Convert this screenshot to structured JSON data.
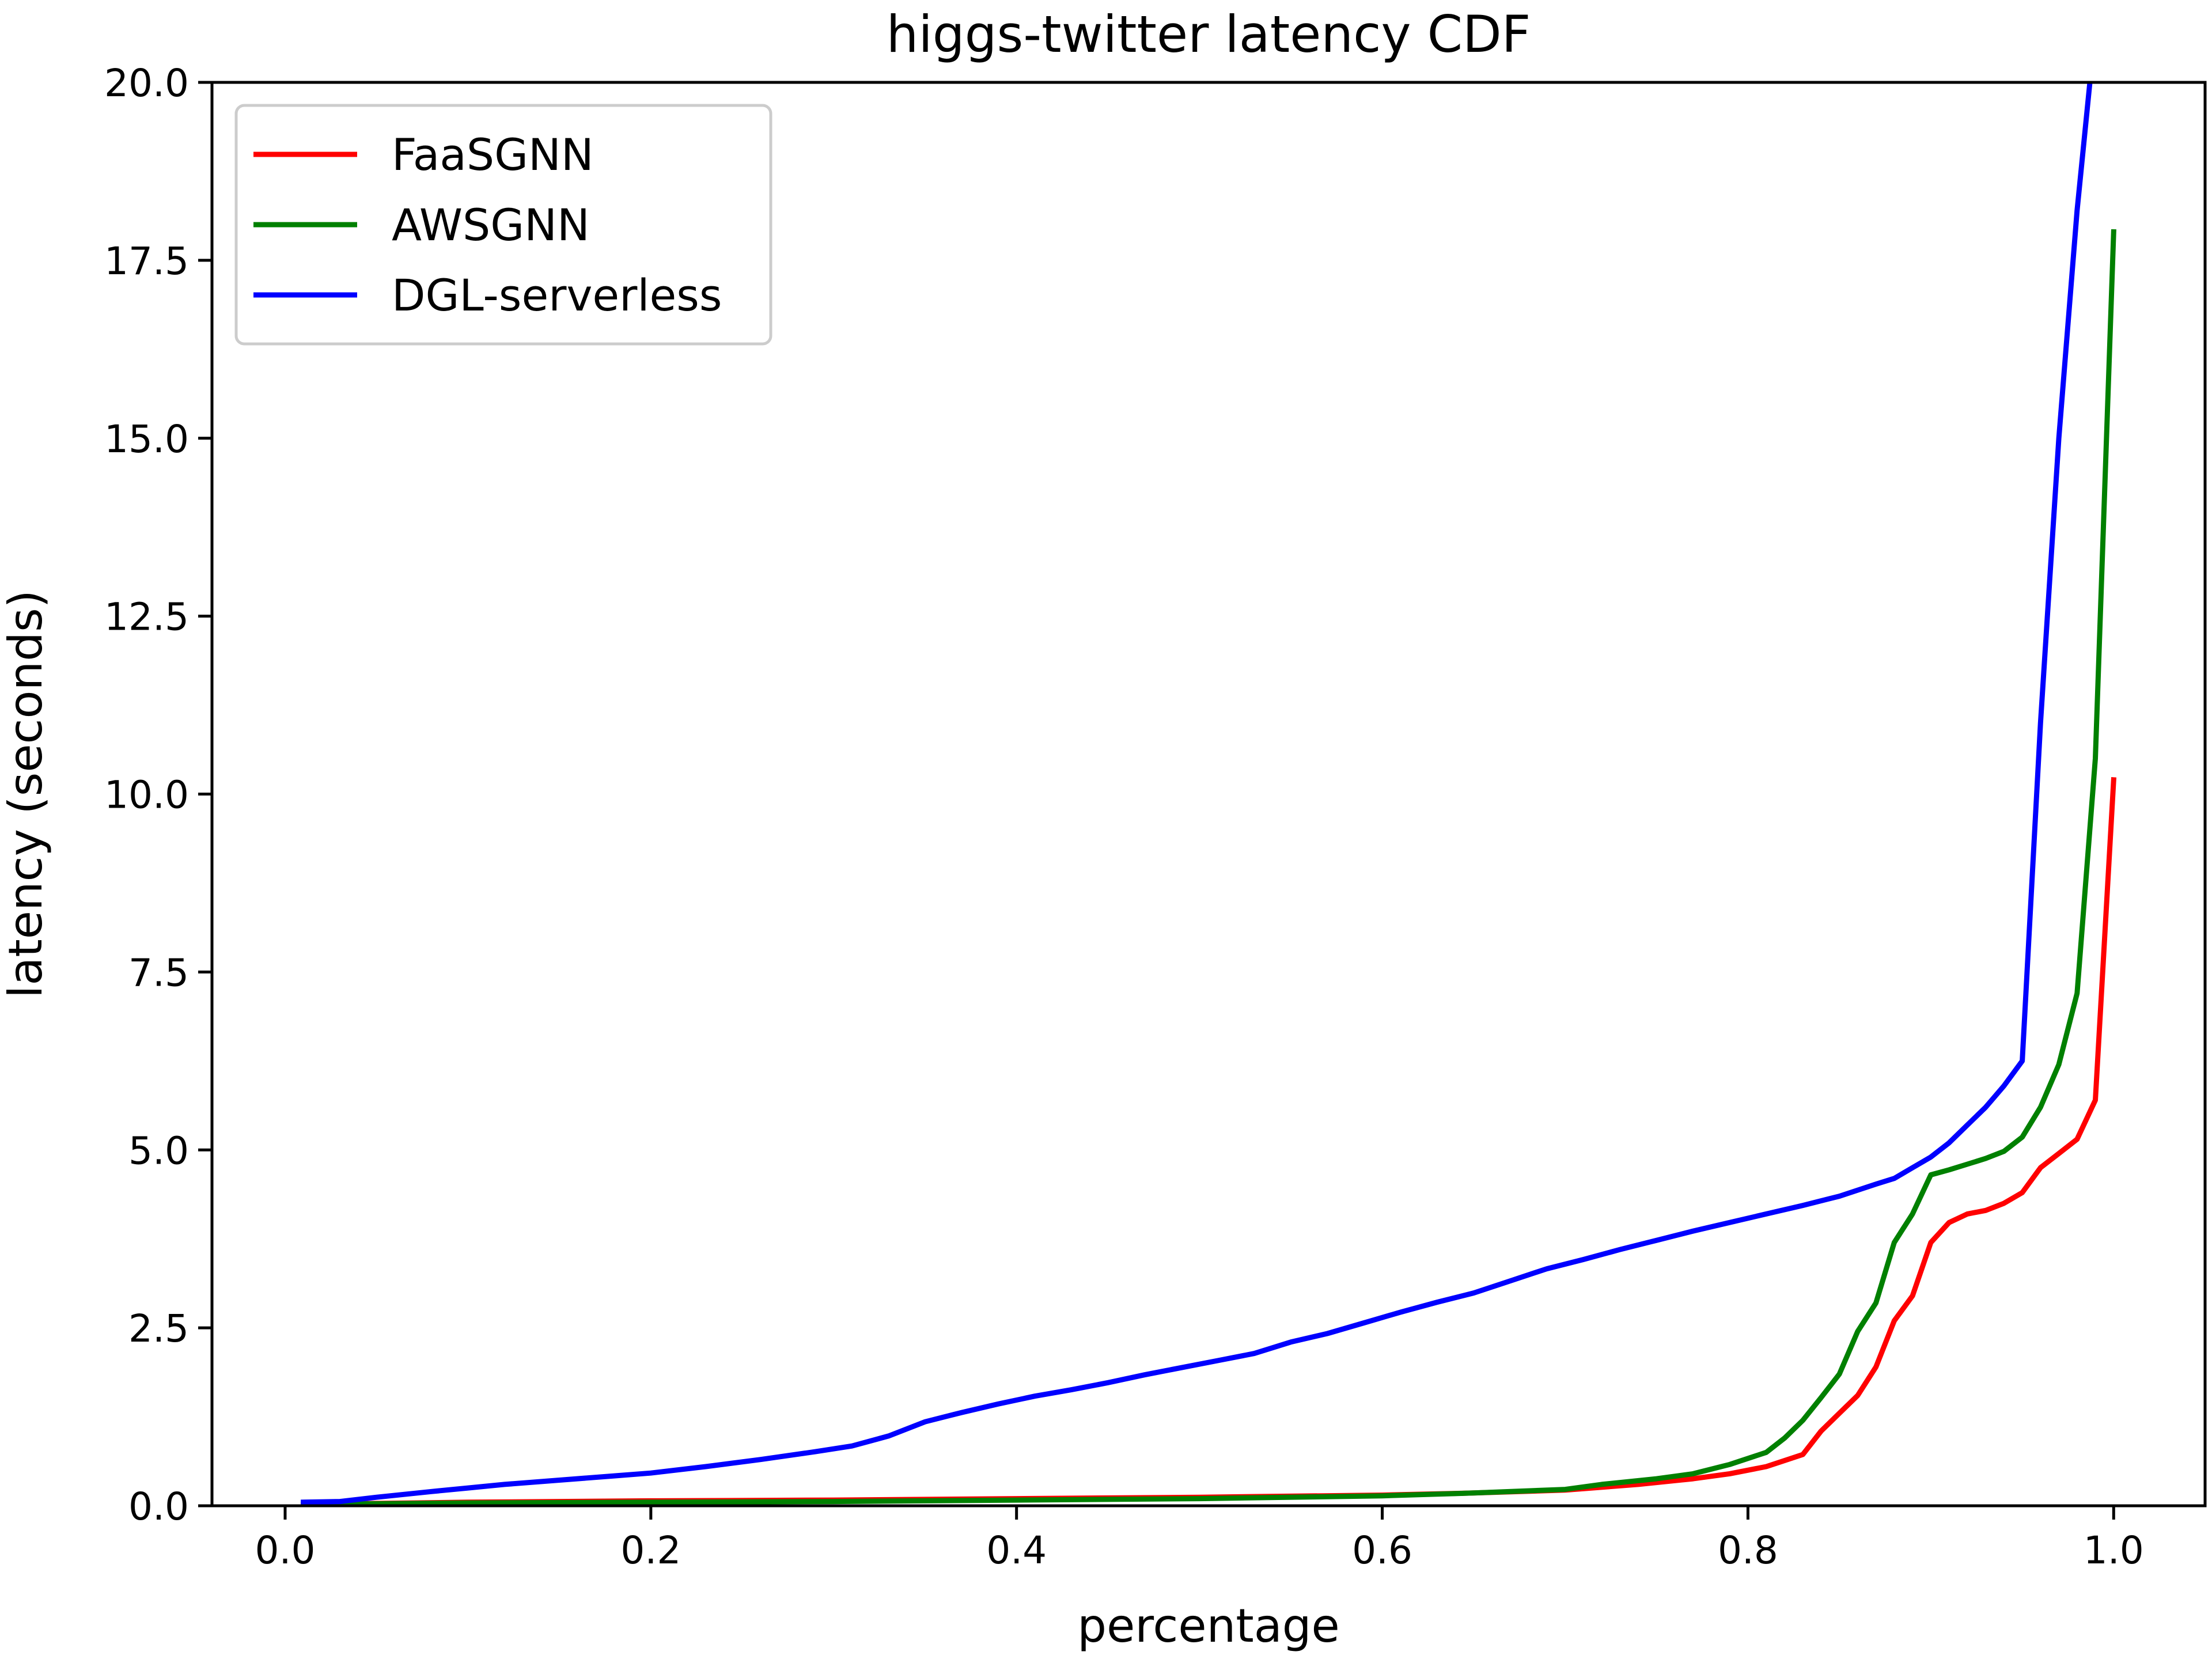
{
  "chart_data": {
    "type": "line",
    "title": "higgs-twitter latency CDF",
    "xlabel": "percentage",
    "ylabel": "latency (seconds)",
    "xlim": [
      -0.04,
      1.05
    ],
    "ylim": [
      0,
      20
    ],
    "x_ticks": [
      "0.0",
      "0.2",
      "0.4",
      "0.6",
      "0.8",
      "1.0"
    ],
    "y_ticks": [
      "0.0",
      "2.5",
      "5.0",
      "7.5",
      "10.0",
      "12.5",
      "15.0",
      "17.5",
      "20.0"
    ],
    "grid": false,
    "legend_position": "top-left",
    "series": [
      {
        "name": "FaaSGNN",
        "color": "#ff0000",
        "points": [
          [
            0.01,
            0.02
          ],
          [
            0.1,
            0.05
          ],
          [
            0.2,
            0.07
          ],
          [
            0.3,
            0.08
          ],
          [
            0.4,
            0.1
          ],
          [
            0.5,
            0.12
          ],
          [
            0.6,
            0.15
          ],
          [
            0.65,
            0.18
          ],
          [
            0.7,
            0.22
          ],
          [
            0.74,
            0.3
          ],
          [
            0.77,
            0.38
          ],
          [
            0.79,
            0.45
          ],
          [
            0.81,
            0.55
          ],
          [
            0.83,
            0.72
          ],
          [
            0.84,
            1.05
          ],
          [
            0.85,
            1.3
          ],
          [
            0.86,
            1.55
          ],
          [
            0.87,
            1.95
          ],
          [
            0.88,
            2.6
          ],
          [
            0.89,
            2.95
          ],
          [
            0.9,
            3.7
          ],
          [
            0.91,
            3.98
          ],
          [
            0.92,
            4.1
          ],
          [
            0.93,
            4.15
          ],
          [
            0.94,
            4.25
          ],
          [
            0.95,
            4.4
          ],
          [
            0.96,
            4.75
          ],
          [
            0.97,
            4.95
          ],
          [
            0.98,
            5.15
          ],
          [
            0.99,
            5.7
          ],
          [
            1.0,
            10.2
          ]
        ]
      },
      {
        "name": "AWSGNN",
        "color": "#008000",
        "points": [
          [
            0.01,
            0.02
          ],
          [
            0.1,
            0.04
          ],
          [
            0.2,
            0.05
          ],
          [
            0.3,
            0.06
          ],
          [
            0.4,
            0.08
          ],
          [
            0.5,
            0.1
          ],
          [
            0.6,
            0.14
          ],
          [
            0.65,
            0.18
          ],
          [
            0.7,
            0.23
          ],
          [
            0.72,
            0.3
          ],
          [
            0.75,
            0.38
          ],
          [
            0.77,
            0.45
          ],
          [
            0.79,
            0.58
          ],
          [
            0.81,
            0.75
          ],
          [
            0.82,
            0.95
          ],
          [
            0.83,
            1.2
          ],
          [
            0.84,
            1.52
          ],
          [
            0.85,
            1.85
          ],
          [
            0.86,
            2.45
          ],
          [
            0.87,
            2.85
          ],
          [
            0.88,
            3.7
          ],
          [
            0.89,
            4.1
          ],
          [
            0.9,
            4.65
          ],
          [
            0.91,
            4.72
          ],
          [
            0.92,
            4.8
          ],
          [
            0.93,
            4.88
          ],
          [
            0.94,
            4.98
          ],
          [
            0.95,
            5.18
          ],
          [
            0.96,
            5.6
          ],
          [
            0.97,
            6.2
          ],
          [
            0.98,
            7.2
          ],
          [
            0.99,
            10.5
          ],
          [
            1.0,
            17.9
          ]
        ]
      },
      {
        "name": "DGL-serverless",
        "color": "#0000ff",
        "points": [
          [
            0.01,
            0.05
          ],
          [
            0.03,
            0.06
          ],
          [
            0.05,
            0.12
          ],
          [
            0.08,
            0.2
          ],
          [
            0.1,
            0.25
          ],
          [
            0.12,
            0.3
          ],
          [
            0.15,
            0.36
          ],
          [
            0.18,
            0.42
          ],
          [
            0.2,
            0.46
          ],
          [
            0.23,
            0.55
          ],
          [
            0.26,
            0.65
          ],
          [
            0.29,
            0.76
          ],
          [
            0.31,
            0.84
          ],
          [
            0.33,
            0.98
          ],
          [
            0.35,
            1.18
          ],
          [
            0.37,
            1.31
          ],
          [
            0.39,
            1.43
          ],
          [
            0.41,
            1.54
          ],
          [
            0.43,
            1.63
          ],
          [
            0.45,
            1.73
          ],
          [
            0.47,
            1.84
          ],
          [
            0.49,
            1.94
          ],
          [
            0.51,
            2.04
          ],
          [
            0.53,
            2.14
          ],
          [
            0.55,
            2.3
          ],
          [
            0.57,
            2.42
          ],
          [
            0.59,
            2.57
          ],
          [
            0.61,
            2.72
          ],
          [
            0.63,
            2.86
          ],
          [
            0.65,
            2.99
          ],
          [
            0.67,
            3.16
          ],
          [
            0.69,
            3.33
          ],
          [
            0.71,
            3.46
          ],
          [
            0.73,
            3.6
          ],
          [
            0.75,
            3.73
          ],
          [
            0.77,
            3.86
          ],
          [
            0.79,
            3.98
          ],
          [
            0.81,
            4.1
          ],
          [
            0.83,
            4.22
          ],
          [
            0.85,
            4.35
          ],
          [
            0.87,
            4.52
          ],
          [
            0.88,
            4.6
          ],
          [
            0.89,
            4.75
          ],
          [
            0.9,
            4.9
          ],
          [
            0.91,
            5.1
          ],
          [
            0.92,
            5.35
          ],
          [
            0.93,
            5.6
          ],
          [
            0.94,
            5.9
          ],
          [
            0.95,
            6.25
          ],
          [
            0.96,
            11.0
          ],
          [
            0.97,
            15.0
          ],
          [
            0.98,
            18.2
          ],
          [
            0.987,
            20.0
          ]
        ]
      }
    ]
  }
}
